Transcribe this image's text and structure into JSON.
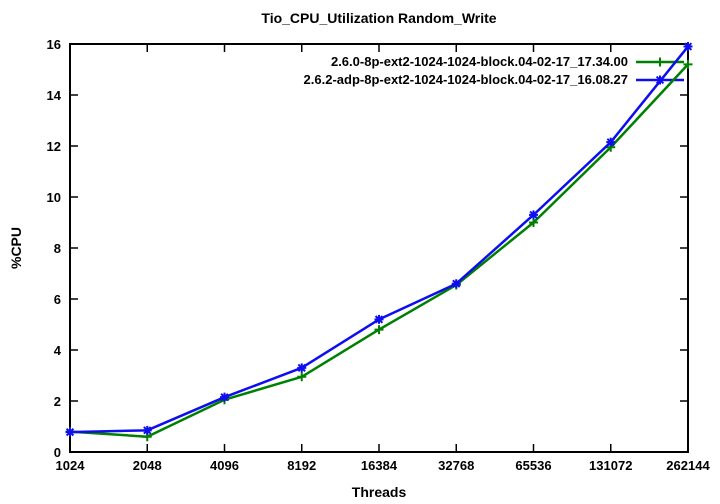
{
  "chart_data": {
    "type": "line",
    "title": "Tio_CPU_Utilization Random_Write",
    "xlabel": "Threads",
    "ylabel": "%CPU",
    "x_scale": "log2",
    "categories": [
      "1024",
      "2048",
      "4096",
      "8192",
      "16384",
      "32768",
      "65536",
      "131072",
      "262144"
    ],
    "ylim": [
      0,
      16
    ],
    "yticks": [
      0,
      2,
      4,
      6,
      8,
      10,
      12,
      14,
      16
    ],
    "grid": false,
    "legend_position": "top-right-inside",
    "series": [
      {
        "name": "2.6.0-8p-ext2-1024-1024-block.04-02-17_17.34.00",
        "color": "#008000",
        "marker": "plus",
        "values": [
          0.8,
          0.6,
          2.05,
          2.95,
          4.8,
          6.55,
          9.0,
          11.95,
          15.2
        ]
      },
      {
        "name": "2.6.2-adp-8p-ext2-1024-1024-block.04-02-17_16.08.27",
        "color": "#0e0eee",
        "marker": "star",
        "values": [
          0.78,
          0.85,
          2.15,
          3.3,
          5.2,
          6.6,
          9.3,
          12.15,
          15.9
        ]
      }
    ]
  }
}
